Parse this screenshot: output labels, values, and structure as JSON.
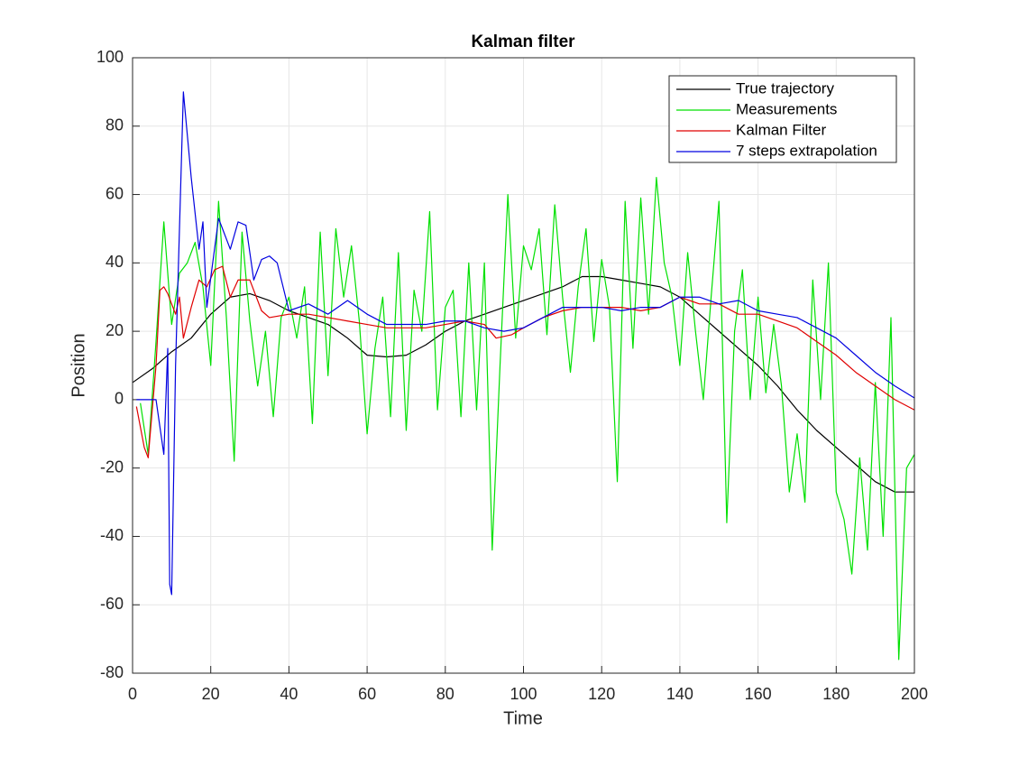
{
  "chart_data": {
    "type": "line",
    "title": "Kalman filter",
    "xlabel": "Time",
    "ylabel": "Position",
    "xlim": [
      0,
      200
    ],
    "ylim": [
      -80,
      100
    ],
    "xticks": [
      0,
      20,
      40,
      60,
      80,
      100,
      120,
      140,
      160,
      180,
      200
    ],
    "yticks": [
      -80,
      -60,
      -40,
      -20,
      0,
      20,
      40,
      60,
      80,
      100
    ],
    "grid": true,
    "legend": "northeast",
    "series": [
      {
        "name": "True trajectory",
        "color": "#000000",
        "x": [
          0,
          5,
          10,
          15,
          20,
          25,
          30,
          35,
          40,
          45,
          50,
          55,
          60,
          65,
          70,
          75,
          80,
          85,
          90,
          95,
          100,
          105,
          110,
          115,
          120,
          125,
          130,
          135,
          140,
          145,
          150,
          155,
          160,
          165,
          170,
          175,
          180,
          185,
          190,
          195,
          200
        ],
        "values": [
          5,
          9,
          14,
          18,
          25,
          30,
          31,
          29,
          26,
          24,
          22,
          18,
          13,
          12.5,
          13,
          16,
          20,
          23,
          25,
          27,
          29,
          31,
          33,
          36,
          36,
          35,
          34,
          33,
          30,
          25,
          20,
          15,
          10,
          4,
          -3,
          -9,
          -14,
          -19,
          -24,
          -27,
          -27
        ]
      },
      {
        "name": "Measurements",
        "color": "#00e000",
        "x": [
          2,
          4,
          6,
          8,
          10,
          12,
          14,
          16,
          18,
          20,
          22,
          24,
          26,
          28,
          30,
          32,
          34,
          36,
          38,
          40,
          42,
          44,
          46,
          48,
          50,
          52,
          54,
          56,
          58,
          60,
          62,
          64,
          66,
          68,
          70,
          72,
          74,
          76,
          78,
          80,
          82,
          84,
          86,
          88,
          90,
          92,
          94,
          96,
          98,
          100,
          102,
          104,
          106,
          108,
          110,
          112,
          114,
          116,
          118,
          120,
          122,
          124,
          126,
          128,
          130,
          132,
          134,
          136,
          138,
          140,
          142,
          144,
          146,
          148,
          150,
          152,
          154,
          156,
          158,
          160,
          162,
          164,
          166,
          168,
          170,
          172,
          174,
          176,
          178,
          180,
          182,
          184,
          186,
          188,
          190,
          192,
          194,
          196,
          198,
          200
        ],
        "values": [
          -1,
          -16,
          17,
          52,
          22,
          37,
          40,
          46,
          33,
          10,
          58,
          24,
          -18,
          49,
          23,
          4,
          20,
          -5,
          24,
          30,
          18,
          33,
          -7,
          49,
          7,
          50,
          30,
          45,
          23,
          -10,
          15,
          30,
          -5,
          43,
          -9,
          32,
          20,
          55,
          -3,
          27,
          32,
          -5,
          40,
          -3,
          40,
          -44,
          10,
          60,
          18,
          45,
          38,
          50,
          19,
          57,
          30,
          8,
          33,
          50,
          17,
          41,
          27,
          -24,
          58,
          15,
          59,
          25,
          65,
          40,
          30,
          10,
          43,
          20,
          0,
          30,
          58,
          -36,
          20,
          38,
          0,
          30,
          2,
          22,
          4,
          -27,
          -10,
          -30,
          35,
          0,
          40,
          -27,
          -35,
          -51,
          -17,
          -44,
          5,
          -40,
          24,
          -76,
          -20,
          -16
        ]
      },
      {
        "name": "Kalman Filter",
        "color": "#e00000",
        "x": [
          1,
          3,
          4,
          6,
          7,
          8,
          9,
          11,
          12,
          13,
          15,
          17,
          19,
          21,
          23,
          25,
          27,
          30,
          33,
          35,
          40,
          45,
          50,
          55,
          60,
          65,
          70,
          75,
          80,
          85,
          90,
          93,
          97,
          100,
          105,
          110,
          115,
          120,
          125,
          130,
          135,
          140,
          145,
          150,
          155,
          160,
          165,
          170,
          175,
          180,
          185,
          190,
          195,
          200
        ],
        "values": [
          -2,
          -14,
          -17,
          10,
          32,
          33,
          31,
          25,
          30,
          18,
          27,
          35,
          33,
          38,
          39,
          30,
          35,
          35,
          26,
          24,
          25,
          25,
          24,
          23,
          22,
          21,
          21,
          21,
          22,
          23,
          22,
          18,
          19,
          21,
          24,
          26,
          27,
          27,
          27,
          26,
          27,
          30,
          28,
          28,
          25,
          25,
          23,
          21,
          17,
          13,
          8,
          4,
          0,
          -3
        ]
      },
      {
        "name": "7 steps extrapolation",
        "color": "#0000e0",
        "x": [
          1,
          6,
          8,
          9,
          9.5,
          10,
          11,
          13,
          15,
          17,
          18,
          19,
          22,
          24,
          25,
          27,
          29,
          31,
          33,
          35,
          37,
          40,
          45,
          50,
          55,
          60,
          65,
          70,
          75,
          80,
          85,
          90,
          95,
          100,
          105,
          110,
          115,
          120,
          125,
          130,
          135,
          140,
          145,
          150,
          155,
          160,
          165,
          170,
          175,
          180,
          185,
          190,
          195,
          200
        ],
        "values": [
          0,
          0,
          -16,
          15,
          -54,
          -57,
          10,
          90,
          65,
          44,
          52,
          27,
          53,
          47,
          44,
          52,
          51,
          35,
          41,
          42,
          40,
          26,
          28,
          25,
          29,
          25,
          22,
          22,
          22,
          23,
          23,
          21,
          20,
          21,
          24,
          27,
          27,
          27,
          26,
          27,
          27,
          30,
          30,
          28,
          29,
          26,
          25,
          24,
          21,
          18,
          13,
          8,
          4,
          0.5
        ]
      }
    ]
  }
}
